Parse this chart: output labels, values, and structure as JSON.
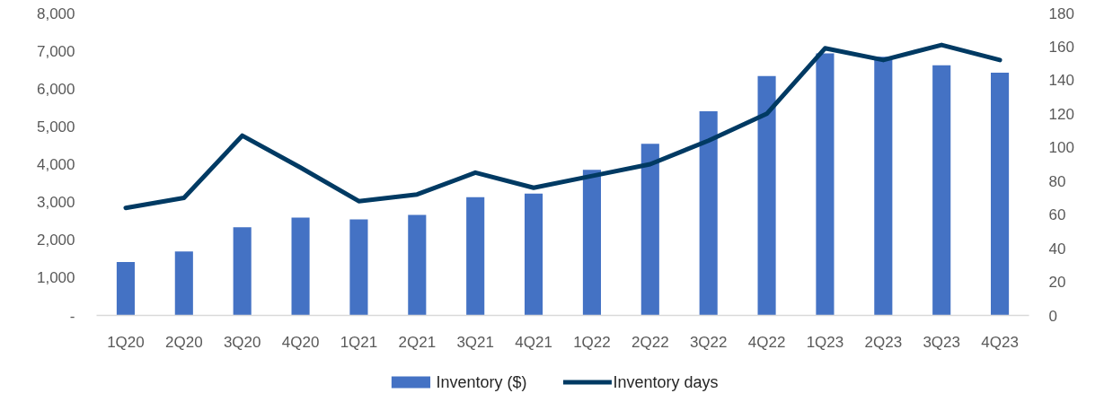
{
  "chart_data": {
    "type": "bar",
    "categories": [
      "1Q20",
      "2Q20",
      "3Q20",
      "4Q20",
      "1Q21",
      "2Q21",
      "3Q21",
      "4Q21",
      "1Q22",
      "2Q22",
      "3Q22",
      "4Q22",
      "1Q23",
      "2Q23",
      "3Q23",
      "4Q23"
    ],
    "series": [
      {
        "name": "Inventory ($)",
        "color": "#4472c4",
        "values": [
          1410,
          1690,
          2330,
          2590,
          2540,
          2660,
          3130,
          3220,
          3850,
          4540,
          5400,
          6330,
          6930,
          6840,
          6620,
          6420
        ]
      },
      {
        "name": "Inventory days",
        "type": "line",
        "axis": "y2",
        "color": "#003a63",
        "values": [
          64,
          70,
          107,
          88,
          68,
          72,
          85,
          76,
          83,
          90,
          104,
          120,
          159,
          152,
          161,
          152
        ]
      }
    ],
    "ylim": [
      0,
      8000
    ],
    "yticks": [
      {
        "value": 0,
        "label": "-"
      },
      {
        "value": 1000,
        "label": "1,000"
      },
      {
        "value": 2000,
        "label": "2,000"
      },
      {
        "value": 3000,
        "label": "3,000"
      },
      {
        "value": 4000,
        "label": "4,000"
      },
      {
        "value": 5000,
        "label": "5,000"
      },
      {
        "value": 6000,
        "label": "6,000"
      },
      {
        "value": 7000,
        "label": "7,000"
      },
      {
        "value": 8000,
        "label": "8,000"
      }
    ],
    "y2lim": [
      0,
      180
    ],
    "y2ticks": [
      0,
      20,
      40,
      60,
      80,
      100,
      120,
      140,
      160,
      180
    ],
    "legend": "bottom",
    "grid": false
  }
}
